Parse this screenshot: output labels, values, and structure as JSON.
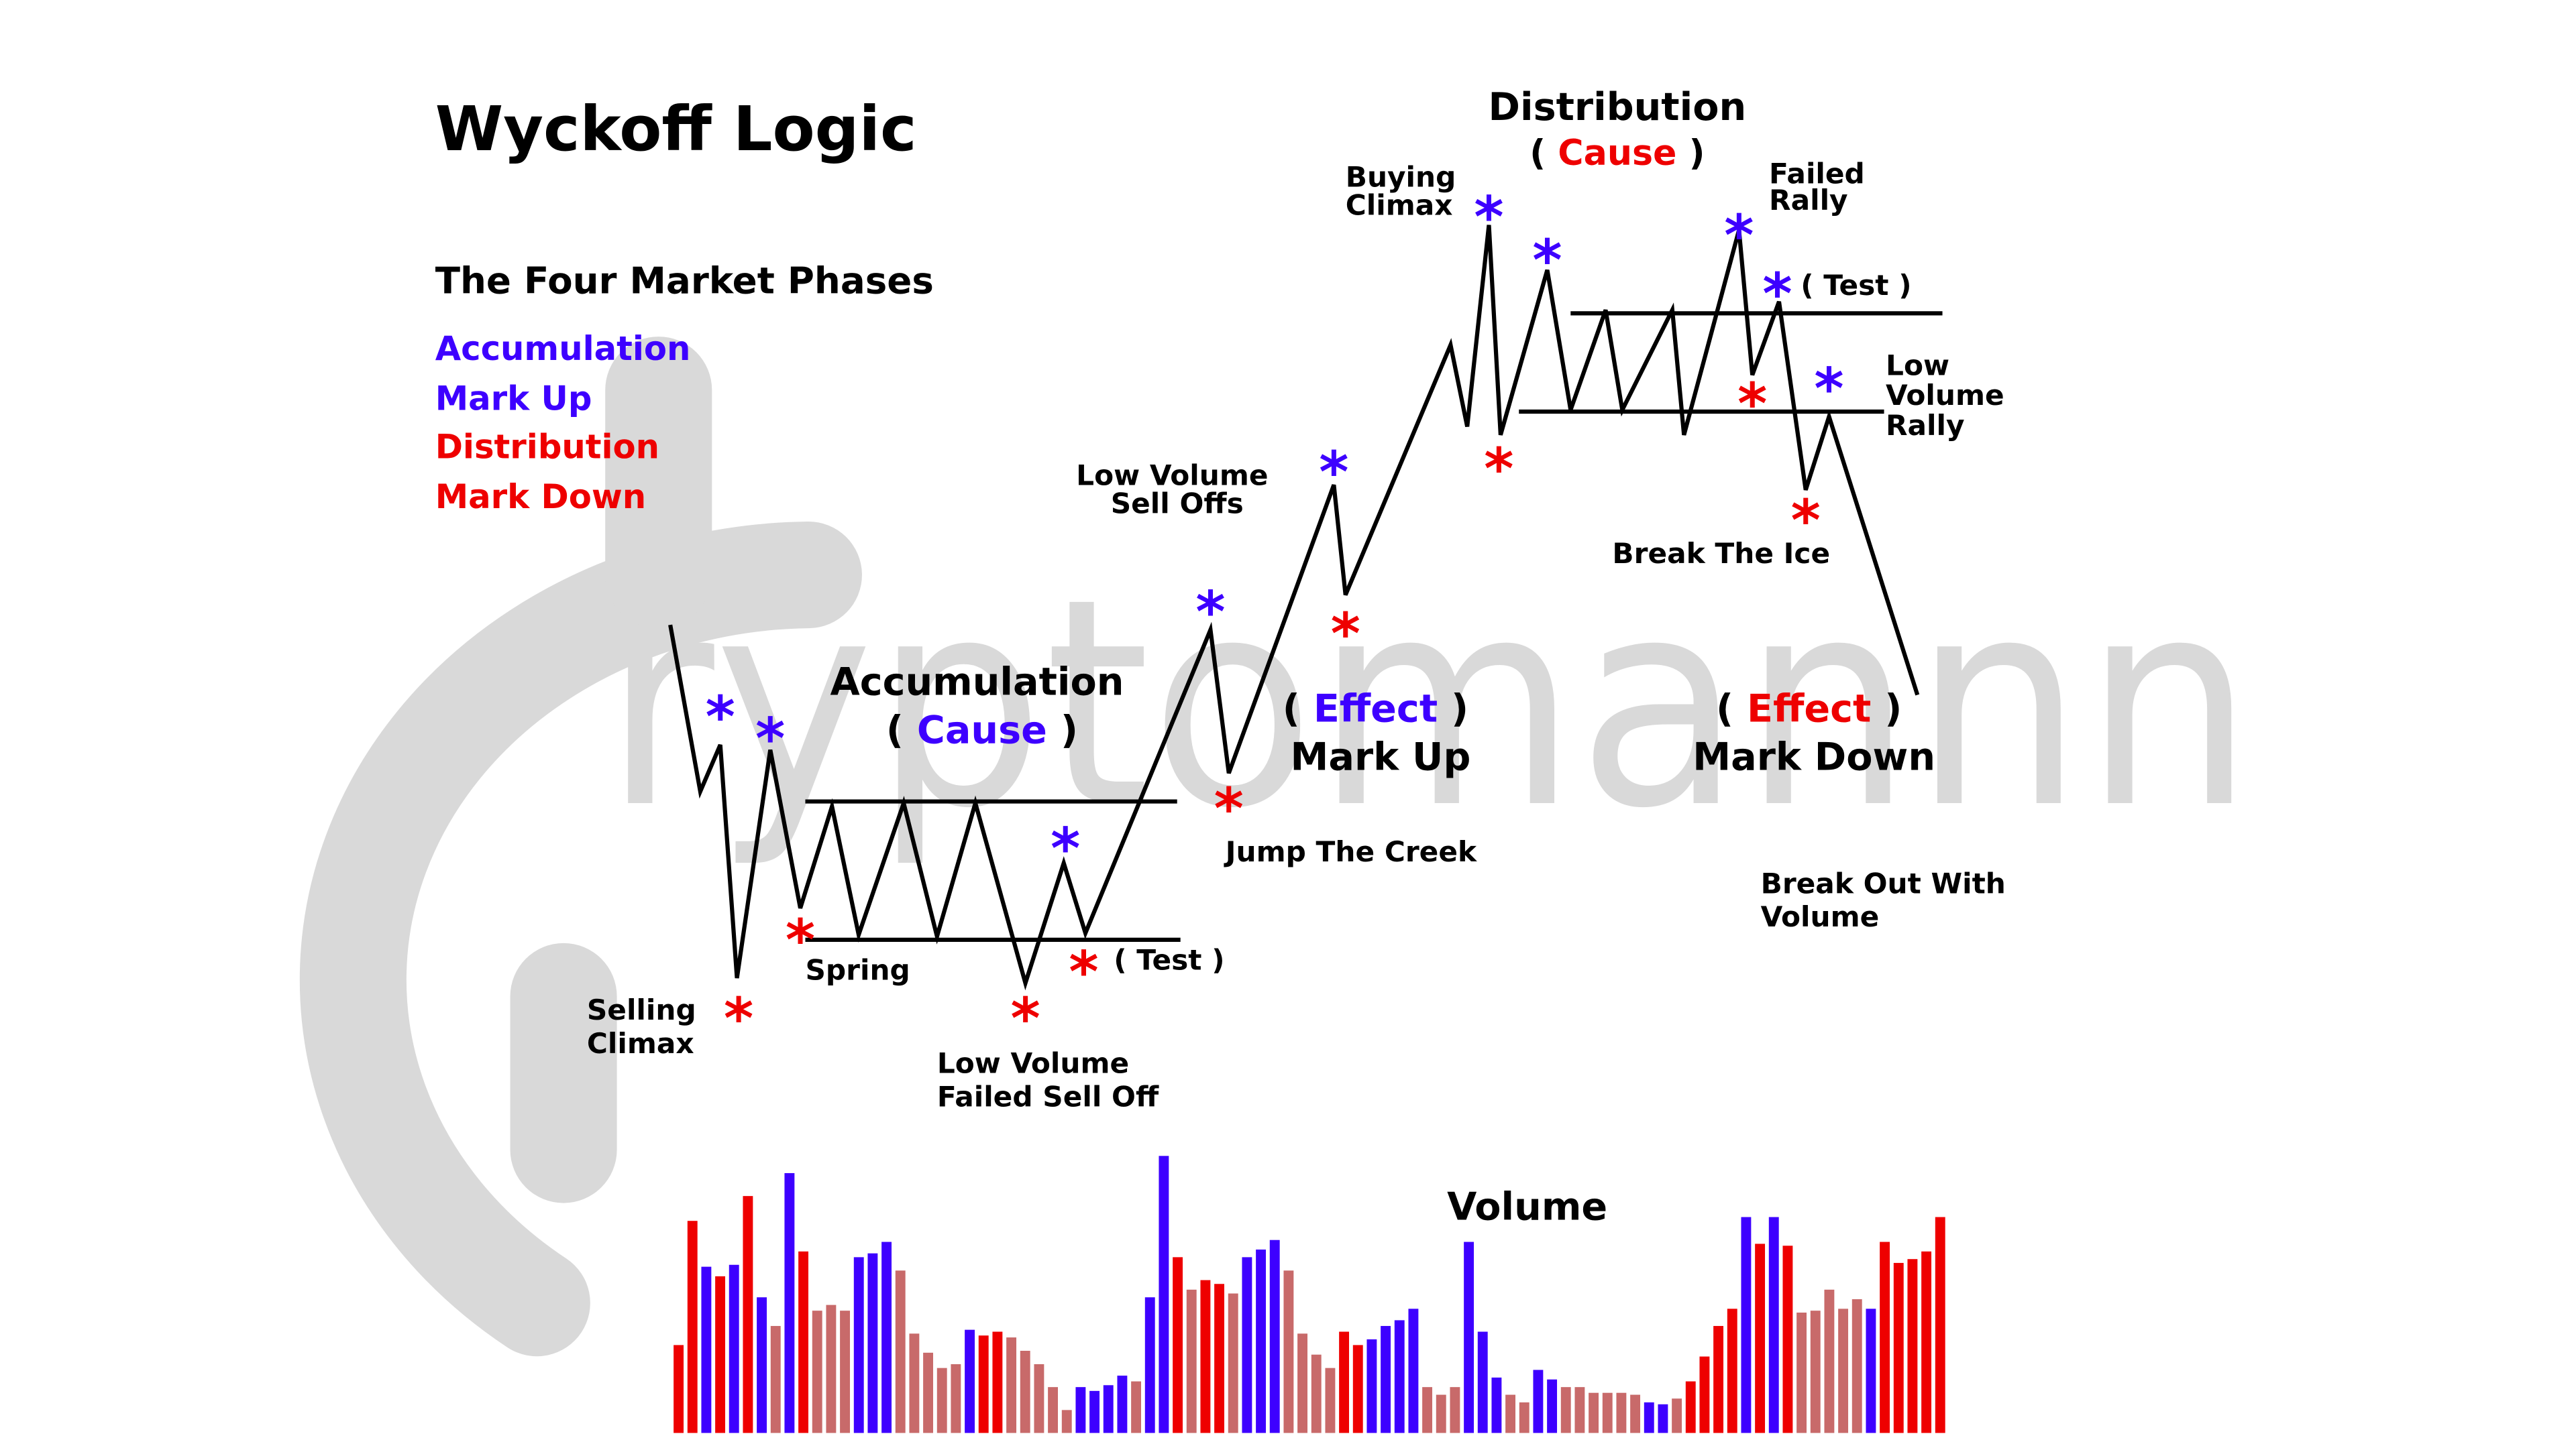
{
  "title": "Wyckoff Logic",
  "subtitle": "The Four Market Phases",
  "watermark": "ryptomannn",
  "colors": {
    "blue": "#3d00ff",
    "red": "#ee0000",
    "redLight": "#c86a6a",
    "black": "#000000",
    "watermark": "#d9d9d9"
  },
  "phases": [
    {
      "label": "Accumulation",
      "color": "#3d00ff"
    },
    {
      "label": "Mark Up",
      "color": "#3d00ff"
    },
    {
      "label": "Distribution",
      "color": "#ee0000"
    },
    {
      "label": "Mark Down",
      "color": "#ee0000"
    }
  ],
  "accumulation": {
    "title": "Accumulation",
    "open": "(",
    "cause": "Cause",
    "close": ")"
  },
  "markup": {
    "open": "(",
    "effect": "Effect",
    "close": ")",
    "title": "Mark Up"
  },
  "distribution": {
    "title": "Distribution",
    "open": "(",
    "cause": "Cause",
    "close": ")"
  },
  "markdown": {
    "open": "(",
    "effect": "Effect",
    "close": ")",
    "title": "Mark Down"
  },
  "labels": {
    "selling_climax_1": "Selling",
    "selling_climax_2": "Climax",
    "spring": "Spring",
    "lv_failed_1": "Low Volume",
    "lv_failed_2": "Failed Sell Off",
    "test_acc": "( Test )",
    "jump_creek": "Jump The Creek",
    "lv_selloffs_1": "Low Volume",
    "lv_selloffs_2": "Sell Offs",
    "buying_climax_1": "Buying",
    "buying_climax_2": "Climax",
    "failed_rally_1": "Failed",
    "failed_rally_2": "Rally",
    "test_dist": "( Test )",
    "lv_rally_1": "Low",
    "lv_rally_2": "Volume",
    "lv_rally_3": "Rally",
    "break_ice": "Break The Ice",
    "break_out_1": "Break Out With",
    "break_out_2": "Volume"
  },
  "marker_symbol": "*",
  "volume": {
    "title": "Volume",
    "bars": [
      [
        "r",
        46
      ],
      [
        "r",
        111
      ],
      [
        "b",
        87
      ],
      [
        "r",
        82
      ],
      [
        "b",
        88
      ],
      [
        "r",
        124
      ],
      [
        "b",
        71
      ],
      [
        "l",
        56
      ],
      [
        "b",
        136
      ],
      [
        "r",
        95
      ],
      [
        "l",
        64
      ],
      [
        "l",
        67
      ],
      [
        "l",
        64
      ],
      [
        "b",
        92
      ],
      [
        "b",
        94
      ],
      [
        "b",
        100
      ],
      [
        "l",
        85
      ],
      [
        "l",
        52
      ],
      [
        "l",
        42
      ],
      [
        "l",
        34
      ],
      [
        "l",
        36
      ],
      [
        "b",
        54
      ],
      [
        "r",
        51
      ],
      [
        "r",
        53
      ],
      [
        "l",
        50
      ],
      [
        "l",
        43
      ],
      [
        "l",
        36
      ],
      [
        "l",
        24
      ],
      [
        "l",
        12
      ],
      [
        "b",
        24
      ],
      [
        "b",
        22
      ],
      [
        "b",
        25
      ],
      [
        "b",
        30
      ],
      [
        "l",
        27
      ],
      [
        "b",
        71
      ],
      [
        "b",
        145
      ],
      [
        "r",
        92
      ],
      [
        "l",
        75
      ],
      [
        "r",
        80
      ],
      [
        "r",
        78
      ],
      [
        "l",
        73
      ],
      [
        "b",
        92
      ],
      [
        "b",
        96
      ],
      [
        "b",
        101
      ],
      [
        "l",
        85
      ],
      [
        "l",
        52
      ],
      [
        "l",
        41
      ],
      [
        "l",
        34
      ],
      [
        "r",
        53
      ],
      [
        "r",
        46
      ],
      [
        "b",
        49
      ],
      [
        "b",
        56
      ],
      [
        "b",
        59
      ],
      [
        "b",
        65
      ],
      [
        "l",
        24
      ],
      [
        "l",
        20
      ],
      [
        "l",
        24
      ],
      [
        "b",
        100
      ],
      [
        "b",
        53
      ],
      [
        "b",
        29
      ],
      [
        "l",
        20
      ],
      [
        "l",
        16
      ],
      [
        "b",
        33
      ],
      [
        "b",
        28
      ],
      [
        "l",
        24
      ],
      [
        "l",
        24
      ],
      [
        "l",
        21
      ],
      [
        "l",
        21
      ],
      [
        "l",
        21
      ],
      [
        "l",
        20
      ],
      [
        "b",
        16
      ],
      [
        "b",
        15
      ],
      [
        "l",
        18
      ],
      [
        "r",
        27
      ],
      [
        "r",
        40
      ],
      [
        "r",
        56
      ],
      [
        "r",
        65
      ],
      [
        "b",
        113
      ],
      [
        "r",
        99
      ],
      [
        "b",
        113
      ],
      [
        "r",
        98
      ],
      [
        "l",
        63
      ],
      [
        "l",
        64
      ],
      [
        "l",
        75
      ],
      [
        "l",
        65
      ],
      [
        "l",
        70
      ],
      [
        "b",
        65
      ],
      [
        "r",
        100
      ],
      [
        "r",
        89
      ],
      [
        "r",
        91
      ],
      [
        "r",
        95
      ],
      [
        "r",
        113
      ]
    ]
  }
}
